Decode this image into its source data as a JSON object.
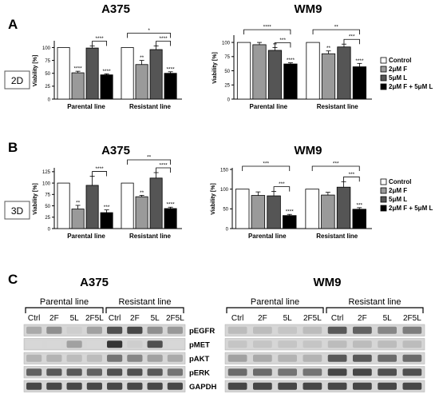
{
  "figure": {
    "panel_labels": [
      "A",
      "B",
      "C"
    ],
    "condition_labels": [
      "2D",
      "3D"
    ]
  },
  "chart_data": [
    {
      "type": "bar",
      "panel": "A",
      "condition": "2D",
      "title": "A375",
      "ylabel": "Viability [%]",
      "ylim": [
        0,
        110
      ],
      "yticks": [
        0,
        25,
        50,
        75,
        100
      ],
      "groups": [
        "Parental line",
        "Resistant line"
      ],
      "series": [
        {
          "name": "Control",
          "values": [
            100,
            100
          ],
          "errors": [
            0,
            0
          ]
        },
        {
          "name": "2μM F",
          "values": [
            51,
            67
          ],
          "errors": [
            3,
            8
          ]
        },
        {
          "name": "5μM L",
          "values": [
            99,
            96
          ],
          "errors": [
            4,
            7
          ]
        },
        {
          "name": "2μM F + 5μM L",
          "values": [
            47,
            50
          ],
          "errors": [
            2,
            3
          ]
        }
      ],
      "bar_marks": [
        [
          "",
          "****",
          "",
          "****"
        ],
        [
          "",
          "**",
          "",
          "****"
        ]
      ],
      "brackets": [
        {
          "group": 0,
          "from": 2,
          "to": 3,
          "label": "****"
        },
        {
          "group": 1,
          "from": 0,
          "to": 3,
          "label": "*"
        },
        {
          "group": 1,
          "from": 2,
          "to": 3,
          "label": "****"
        }
      ]
    },
    {
      "type": "bar",
      "panel": "A",
      "condition": "2D",
      "title": "WM9",
      "ylabel": "Viability [%]",
      "ylim": [
        0,
        110
      ],
      "yticks": [
        0,
        25,
        50,
        75,
        100
      ],
      "groups": [
        "Parental line",
        "Resistant line"
      ],
      "series": [
        {
          "name": "Control",
          "values": [
            100,
            100
          ],
          "errors": [
            0,
            0
          ]
        },
        {
          "name": "2μM F",
          "values": [
            96,
            80
          ],
          "errors": [
            4,
            5
          ]
        },
        {
          "name": "5μM L",
          "values": [
            86,
            92
          ],
          "errors": [
            5,
            5
          ]
        },
        {
          "name": "2μM F + 5μM L",
          "values": [
            62,
            57
          ],
          "errors": [
            2,
            6
          ]
        }
      ],
      "bar_marks": [
        [
          "",
          "",
          "**",
          "****"
        ],
        [
          "",
          "**",
          "",
          "****"
        ]
      ],
      "brackets": [
        {
          "group": 0,
          "from": 0,
          "to": 3,
          "label": "****"
        },
        {
          "group": 0,
          "from": 2,
          "to": 3,
          "label": "***"
        },
        {
          "group": 1,
          "from": 0,
          "to": 3,
          "label": "**"
        },
        {
          "group": 1,
          "from": 2,
          "to": 3,
          "label": "***"
        }
      ]
    },
    {
      "type": "bar",
      "panel": "B",
      "condition": "3D",
      "title": "A375",
      "ylabel": "Viability [%]",
      "ylim": [
        0,
        130
      ],
      "yticks": [
        0,
        25,
        50,
        75,
        100,
        125
      ],
      "groups": [
        "Parental line",
        "Resistant line"
      ],
      "series": [
        {
          "name": "Control",
          "values": [
            100,
            100
          ],
          "errors": [
            0,
            0
          ]
        },
        {
          "name": "2μM F",
          "values": [
            43,
            70
          ],
          "errors": [
            8,
            3
          ]
        },
        {
          "name": "5μM L",
          "values": [
            95,
            111
          ],
          "errors": [
            20,
            12
          ]
        },
        {
          "name": "2μM F + 5μM L",
          "values": [
            35,
            44
          ],
          "errors": [
            6,
            3
          ]
        }
      ],
      "bar_marks": [
        [
          "",
          "**",
          "",
          "***"
        ],
        [
          "",
          "**",
          "",
          "****"
        ]
      ],
      "brackets": [
        {
          "group": 0,
          "from": 2,
          "to": 3,
          "label": "****"
        },
        {
          "group": 1,
          "from": 0,
          "to": 3,
          "label": "**"
        },
        {
          "group": 1,
          "from": 2,
          "to": 3,
          "label": "****"
        }
      ]
    },
    {
      "type": "bar",
      "panel": "B",
      "condition": "3D",
      "title": "WM9",
      "ylabel": "Viability [%]",
      "ylim": [
        0,
        150
      ],
      "yticks": [
        0,
        50,
        100,
        150
      ],
      "groups": [
        "Parental line",
        "Resistant line"
      ],
      "series": [
        {
          "name": "Control",
          "values": [
            100,
            100
          ],
          "errors": [
            0,
            0
          ]
        },
        {
          "name": "2μM F",
          "values": [
            84,
            85
          ],
          "errors": [
            9,
            7
          ]
        },
        {
          "name": "5μM L",
          "values": [
            83,
            105
          ],
          "errors": [
            11,
            14
          ]
        },
        {
          "name": "2μM F + 5μM L",
          "values": [
            33,
            49
          ],
          "errors": [
            3,
            4
          ]
        }
      ],
      "bar_marks": [
        [
          "",
          "",
          "",
          "****"
        ],
        [
          "",
          "",
          "",
          "***"
        ]
      ],
      "brackets": [
        {
          "group": 0,
          "from": 0,
          "to": 3,
          "label": "***"
        },
        {
          "group": 0,
          "from": 2,
          "to": 3,
          "label": "***"
        },
        {
          "group": 1,
          "from": 0,
          "to": 3,
          "label": "***"
        },
        {
          "group": 1,
          "from": 2,
          "to": 3,
          "label": "***"
        }
      ]
    }
  ],
  "legend": {
    "labels": [
      "Control",
      "2μM F",
      "5μM L",
      "2μM F + 5μM L"
    ],
    "colors": [
      "#ffffff",
      "#9a9a9a",
      "#555555",
      "#000000"
    ]
  },
  "blots": [
    {
      "title": "A375",
      "groups": [
        {
          "label": "Parental line"
        },
        {
          "label": "Resistant line"
        }
      ],
      "lanes": [
        "Ctrl",
        "2F",
        "5L",
        "2F5L",
        "Ctrl",
        "2F",
        "5L",
        "2F5L"
      ],
      "proteins": [
        "pEGFR",
        "pMET",
        "pAKT",
        "pERK",
        "GAPDH"
      ],
      "intensity": [
        [
          0.3,
          0.45,
          0.1,
          0.35,
          0.8,
          0.85,
          0.45,
          0.4
        ],
        [
          0.05,
          0.05,
          0.35,
          0.05,
          0.95,
          0.1,
          0.8,
          0.05
        ],
        [
          0.25,
          0.25,
          0.2,
          0.2,
          0.6,
          0.5,
          0.35,
          0.3
        ],
        [
          0.7,
          0.75,
          0.75,
          0.7,
          0.8,
          0.8,
          0.75,
          0.6
        ],
        [
          0.85,
          0.85,
          0.85,
          0.85,
          0.85,
          0.85,
          0.85,
          0.85
        ]
      ]
    },
    {
      "title": "WM9",
      "groups": [
        {
          "label": "Parental line"
        },
        {
          "label": "Resistant line"
        }
      ],
      "lanes": [
        "Ctrl",
        "2F",
        "5L",
        "2F5L",
        "Ctrl",
        "2F",
        "5L",
        "2F5L"
      ],
      "proteins": [
        "pEGFR",
        "pMET",
        "pAKT",
        "pERK",
        "GAPDH"
      ],
      "intensity": [
        [
          0.2,
          0.2,
          0.15,
          0.2,
          0.75,
          0.7,
          0.5,
          0.55
        ],
        [
          0.15,
          0.15,
          0.15,
          0.15,
          0.2,
          0.2,
          0.2,
          0.2
        ],
        [
          0.35,
          0.3,
          0.25,
          0.25,
          0.75,
          0.75,
          0.65,
          0.65
        ],
        [
          0.65,
          0.65,
          0.6,
          0.6,
          0.85,
          0.85,
          0.8,
          0.8
        ],
        [
          0.85,
          0.85,
          0.85,
          0.85,
          0.85,
          0.85,
          0.85,
          0.85
        ]
      ]
    }
  ]
}
